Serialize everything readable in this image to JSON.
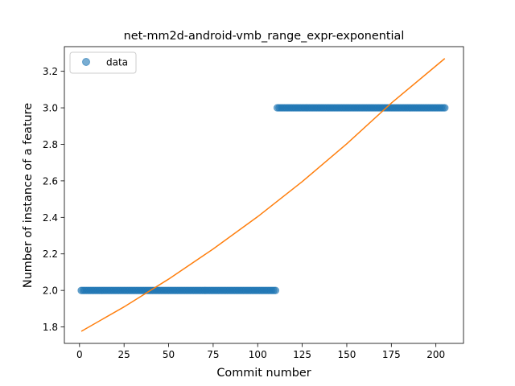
{
  "chart_data": {
    "type": "scatter",
    "title": "net-mm2d-android-vmb_range_expr-exponential",
    "xlabel": "Commit number",
    "ylabel": "Number of instance of a feature",
    "xlim": [
      -8.5,
      215.5
    ],
    "ylim": [
      1.71,
      3.335
    ],
    "xticks": [
      0,
      25,
      50,
      75,
      100,
      125,
      150,
      175,
      200
    ],
    "yticks": [
      1.8,
      2.0,
      2.2,
      2.4,
      2.6,
      2.8,
      3.0,
      3.2
    ],
    "xtick_labels": [
      "0",
      "25",
      "50",
      "75",
      "100",
      "125",
      "150",
      "175",
      "200"
    ],
    "ytick_labels": [
      "1.8",
      "2.0",
      "2.2",
      "2.4",
      "2.6",
      "2.8",
      "3.0",
      "3.2"
    ],
    "grid": false,
    "legend": {
      "placement": "top-left",
      "entries": [
        "data"
      ]
    },
    "series": [
      {
        "name": "data",
        "kind": "points",
        "color": "#1f77b4",
        "segments": [
          {
            "x_start": 1,
            "x_end": 110,
            "y": 2.0
          },
          {
            "x_start": 111,
            "x_end": 205,
            "y": 3.0
          }
        ]
      },
      {
        "kind": "fit-line",
        "color": "#ff7f0e",
        "x": [
          1,
          25,
          50,
          75,
          100,
          125,
          150,
          175,
          205
        ],
        "y": [
          1.776,
          1.91,
          2.062,
          2.227,
          2.404,
          2.596,
          2.803,
          3.026,
          3.27
        ]
      }
    ]
  }
}
